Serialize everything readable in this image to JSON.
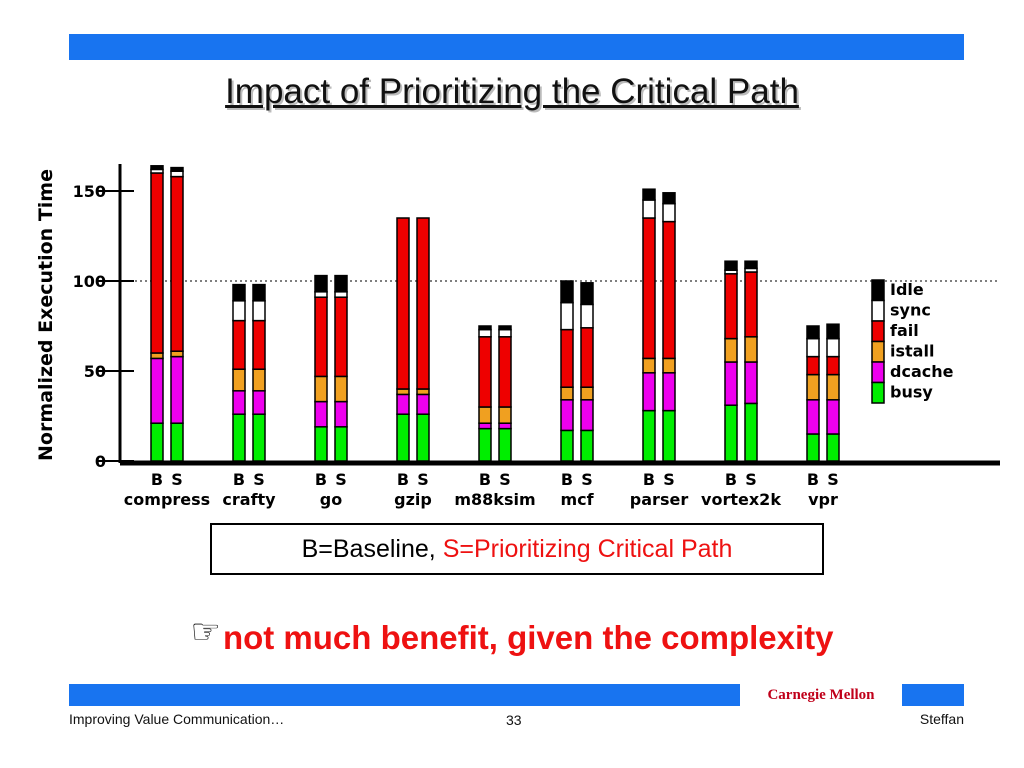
{
  "slide": {
    "title": "Impact of Prioritizing the Critical Path",
    "legend_baseline": "B=Baseline, ",
    "legend_prioritized": "S=Prioritizing Critical Path",
    "note_icon": "pointing-hand-icon",
    "note": "not much benefit, given the complexity",
    "brand": "Carnegie Mellon",
    "footer_left": "Improving Value Communication…",
    "page_number": "33",
    "footer_right": "Steffan",
    "accent_color": "#1874f0",
    "note_color": "#ee1111"
  },
  "chart_data": {
    "type": "bar",
    "stacked": true,
    "ylabel": "Normalized Execution Time",
    "yticks": [
      "0",
      "50",
      "100",
      "150"
    ],
    "ylim": [
      0,
      165
    ],
    "reference_line": 100,
    "categories": [
      "compress",
      "crafty",
      "go",
      "gzip",
      "m88ksim",
      "mcf",
      "parser",
      "vortex2k",
      "vpr"
    ],
    "bar_labels": [
      "B",
      "S"
    ],
    "components": [
      {
        "name": "busy",
        "color": "#00ee00"
      },
      {
        "name": "dcache",
        "color": "#ee00ee"
      },
      {
        "name": "istall",
        "color": "#f0a020"
      },
      {
        "name": "fail",
        "color": "#ee0000"
      },
      {
        "name": "sync",
        "color": "#ffffff"
      },
      {
        "name": "idle",
        "color": "#000000"
      }
    ],
    "legend_order": [
      "idle",
      "sync",
      "fail",
      "istall",
      "dcache",
      "busy"
    ],
    "bars": [
      {
        "category": "compress",
        "label": "B",
        "values": [
          21,
          36,
          3,
          100,
          2,
          2
        ]
      },
      {
        "category": "compress",
        "label": "S",
        "values": [
          21,
          37,
          3,
          97,
          3,
          2
        ]
      },
      {
        "category": "crafty",
        "label": "B",
        "values": [
          26,
          13,
          12,
          27,
          11,
          9
        ]
      },
      {
        "category": "crafty",
        "label": "S",
        "values": [
          26,
          13,
          12,
          27,
          11,
          9
        ]
      },
      {
        "category": "go",
        "label": "B",
        "values": [
          19,
          14,
          14,
          44,
          3,
          9
        ]
      },
      {
        "category": "go",
        "label": "S",
        "values": [
          19,
          14,
          14,
          44,
          3,
          9
        ]
      },
      {
        "category": "gzip",
        "label": "B",
        "values": [
          26,
          11,
          3,
          95,
          0,
          0
        ]
      },
      {
        "category": "gzip",
        "label": "S",
        "values": [
          26,
          11,
          3,
          95,
          0,
          0
        ]
      },
      {
        "category": "m88ksim",
        "label": "B",
        "values": [
          18,
          3,
          9,
          39,
          4,
          2
        ]
      },
      {
        "category": "m88ksim",
        "label": "S",
        "values": [
          18,
          3,
          9,
          39,
          4,
          2
        ]
      },
      {
        "category": "mcf",
        "label": "B",
        "values": [
          17,
          17,
          7,
          32,
          15,
          12
        ]
      },
      {
        "category": "mcf",
        "label": "S",
        "values": [
          17,
          17,
          7,
          33,
          13,
          12
        ]
      },
      {
        "category": "parser",
        "label": "B",
        "values": [
          28,
          21,
          8,
          78,
          10,
          6
        ]
      },
      {
        "category": "parser",
        "label": "S",
        "values": [
          28,
          21,
          8,
          76,
          10,
          6
        ]
      },
      {
        "category": "vortex2k",
        "label": "B",
        "values": [
          31,
          24,
          13,
          36,
          2,
          5
        ]
      },
      {
        "category": "vortex2k",
        "label": "S",
        "values": [
          32,
          23,
          14,
          36,
          2,
          4
        ]
      },
      {
        "category": "vpr",
        "label": "B",
        "values": [
          15,
          19,
          14,
          10,
          10,
          7
        ]
      },
      {
        "category": "vpr",
        "label": "S",
        "values": [
          15,
          19,
          14,
          10,
          10,
          8
        ]
      }
    ]
  }
}
